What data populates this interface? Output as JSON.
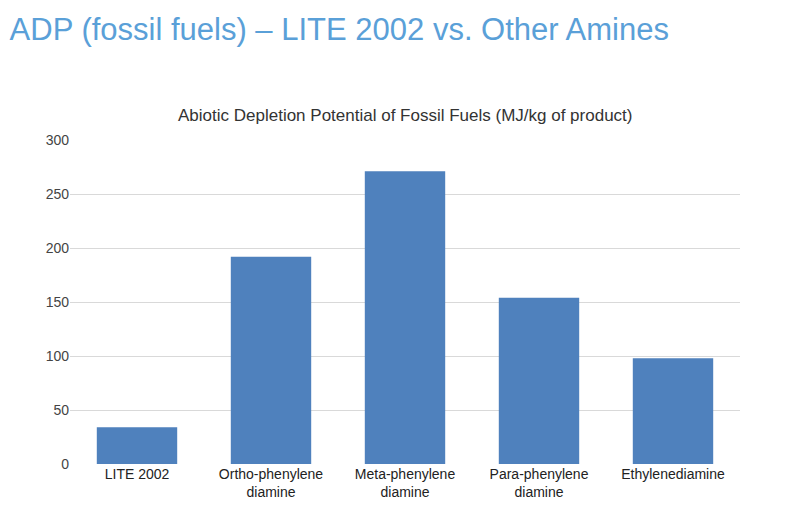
{
  "chart_data": {
    "type": "bar",
    "title": "ADP (fossil fuels) – LITE 2002 vs. Other Amines",
    "subtitle": "Abiotic Depletion Potential of Fossil Fuels (MJ/kg of product)",
    "categories": [
      "LITE 2002",
      "Ortho-phenylene diamine",
      "Meta-phenylene diamine",
      "Para-phenylene diamine",
      "Ethylenediamine"
    ],
    "values": [
      34,
      192,
      271,
      154,
      98
    ],
    "color": "#4f81bd",
    "ylim": [
      0,
      300
    ],
    "yticks": [
      0,
      50,
      100,
      150,
      200,
      250,
      300
    ],
    "grid": true
  }
}
